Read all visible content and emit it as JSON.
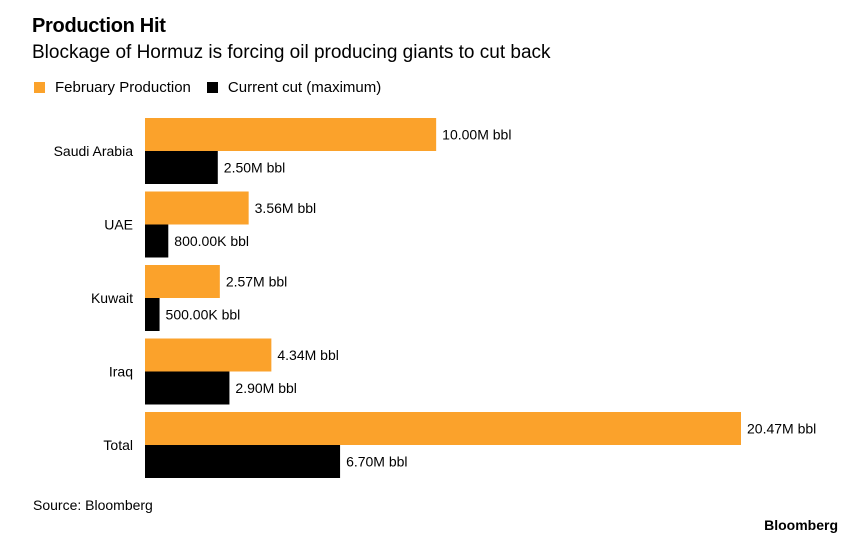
{
  "header": {
    "title": "Production Hit",
    "subtitle": "Blockage of Hormuz is forcing oil producing giants to cut back"
  },
  "legend": {
    "items": [
      {
        "label": "February Production",
        "color": "#fba22b"
      },
      {
        "label": "Current cut (maximum)",
        "color": "#000000"
      }
    ]
  },
  "footer": {
    "source": "Source: Bloomberg",
    "brand": "Bloomberg"
  },
  "chart_data": {
    "type": "bar",
    "orientation": "horizontal",
    "title": "Production Hit",
    "subtitle": "Blockage of Hormuz is forcing oil producing giants to cut back",
    "categories": [
      "Saudi Arabia",
      "UAE",
      "Kuwait",
      "Iraq",
      "Total"
    ],
    "unit": "M bbl",
    "xlim": [
      0,
      20.47
    ],
    "grid": false,
    "legend_position": "top-left",
    "series": [
      {
        "name": "February Production",
        "color": "#fba22b",
        "values": [
          10.0,
          3.56,
          2.57,
          4.34,
          20.47
        ],
        "labels": [
          "10.00M bbl",
          "3.56M bbl",
          "2.57M bbl",
          "4.34M bbl",
          "20.47M bbl"
        ]
      },
      {
        "name": "Current cut (maximum)",
        "color": "#000000",
        "values": [
          2.5,
          0.8,
          0.5,
          2.9,
          6.7
        ],
        "labels": [
          "2.50M bbl",
          "800.00K bbl",
          "500.00K bbl",
          "2.90M bbl",
          "6.70M bbl"
        ]
      }
    ]
  }
}
